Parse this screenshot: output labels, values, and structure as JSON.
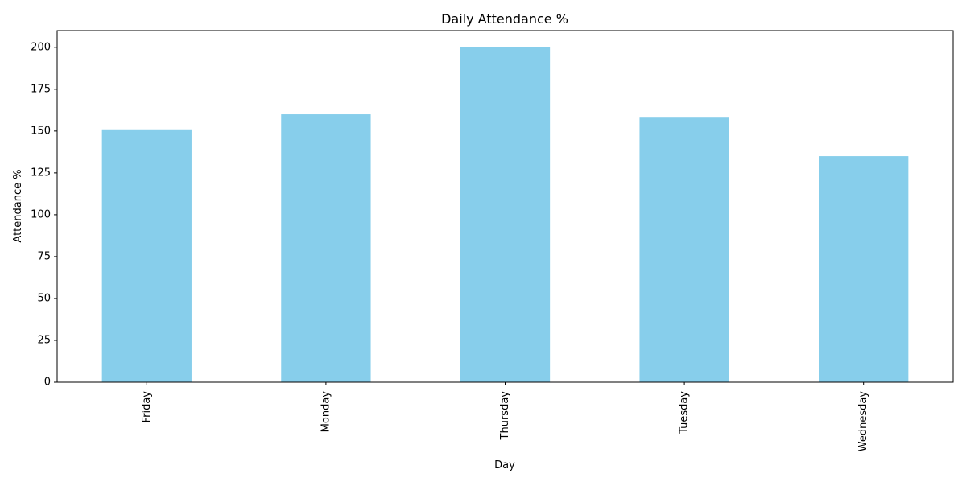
{
  "chart_data": {
    "type": "bar",
    "title": "Daily Attendance %",
    "xlabel": "Day",
    "ylabel": "Attendance %",
    "categories": [
      "Friday",
      "Monday",
      "Thursday",
      "Tuesday",
      "Wednesday"
    ],
    "values": [
      151,
      160,
      200,
      158,
      135
    ],
    "ylim": [
      0,
      210
    ],
    "yticks": [
      0,
      25,
      50,
      75,
      100,
      125,
      150,
      175,
      200
    ],
    "bar_color": "#87CEEB",
    "grid": false,
    "legend": "none"
  }
}
